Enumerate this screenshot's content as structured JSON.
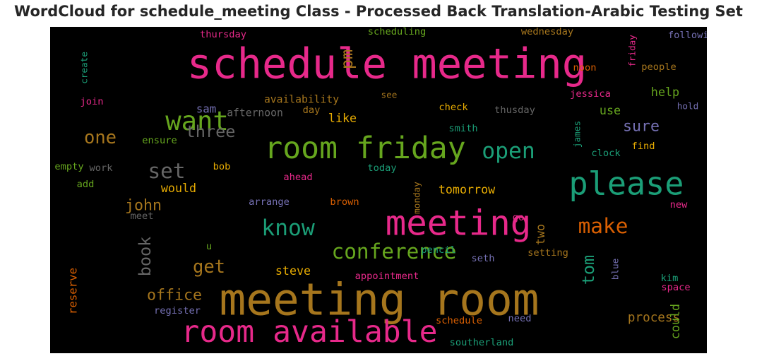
{
  "chart_data": {
    "type": "wordcloud",
    "title": "WordCloud for schedule_meeting Class - Processed Back Translation-Arabic Testing Set",
    "background": "#000000",
    "words": [
      {
        "text": "schedule meeting",
        "weight": 60,
        "color": "#e7298a"
      },
      {
        "text": "meeting room",
        "weight": 64,
        "color": "#a6761d"
      },
      {
        "text": "room available",
        "weight": 44,
        "color": "#e7298a"
      },
      {
        "text": "meeting",
        "weight": 50,
        "color": "#e7298a"
      },
      {
        "text": "room friday",
        "weight": 44,
        "color": "#66a61e"
      },
      {
        "text": "please",
        "weight": 46,
        "color": "#1b9e77"
      },
      {
        "text": "want",
        "weight": 38,
        "color": "#66a61e"
      },
      {
        "text": "conference",
        "weight": 30,
        "color": "#66a61e"
      },
      {
        "text": "open",
        "weight": 32,
        "color": "#1b9e77"
      },
      {
        "text": "know",
        "weight": 32,
        "color": "#1b9e77"
      },
      {
        "text": "make",
        "weight": 30,
        "color": "#d95f02"
      },
      {
        "text": "set",
        "weight": 30,
        "color": "#666666"
      },
      {
        "text": "three",
        "weight": 24,
        "color": "#666666"
      },
      {
        "text": "one",
        "weight": 26,
        "color": "#a6761d"
      },
      {
        "text": "pm",
        "weight": 24,
        "color": "#a6761d",
        "rotate": true
      },
      {
        "text": "sure",
        "weight": 22,
        "color": "#7570b3"
      },
      {
        "text": "get",
        "weight": 26,
        "color": "#a6761d"
      },
      {
        "text": "tom",
        "weight": 24,
        "color": "#1b9e77",
        "rotate": true
      },
      {
        "text": "john",
        "weight": 22,
        "color": "#a6761d"
      },
      {
        "text": "book",
        "weight": 24,
        "color": "#666666",
        "rotate": true
      },
      {
        "text": "office",
        "weight": 22,
        "color": "#a6761d"
      },
      {
        "text": "process",
        "weight": 18,
        "color": "#a6761d"
      },
      {
        "text": "tomorrow",
        "weight": 17,
        "color": "#e6ab02"
      },
      {
        "text": "would",
        "weight": 17,
        "color": "#e6ab02"
      },
      {
        "text": "steve",
        "weight": 17,
        "color": "#e6ab02"
      },
      {
        "text": "help",
        "weight": 17,
        "color": "#66a61e"
      },
      {
        "text": "use",
        "weight": 17,
        "color": "#66a61e"
      },
      {
        "text": "like",
        "weight": 17,
        "color": "#e6ab02"
      },
      {
        "text": "two",
        "weight": 17,
        "color": "#a6761d",
        "rotate": true
      },
      {
        "text": "could",
        "weight": 17,
        "color": "#66a61e",
        "rotate": true
      },
      {
        "text": "reserve",
        "weight": 16,
        "color": "#d95f02",
        "rotate": true
      },
      {
        "text": "sam",
        "weight": 16,
        "color": "#7570b3"
      },
      {
        "text": "availability",
        "weight": 15,
        "color": "#a6761d"
      },
      {
        "text": "afternoon",
        "weight": 15,
        "color": "#666666"
      },
      {
        "text": "day",
        "weight": 14,
        "color": "#a6761d"
      },
      {
        "text": "check",
        "weight": 14,
        "color": "#e6ab02"
      },
      {
        "text": "thusday",
        "weight": 14,
        "color": "#666666"
      },
      {
        "text": "jessica",
        "weight": 14,
        "color": "#e7298a"
      },
      {
        "text": "hold",
        "weight": 13,
        "color": "#7570b3"
      },
      {
        "text": "thursday",
        "weight": 14,
        "color": "#e7298a"
      },
      {
        "text": "scheduling",
        "weight": 14,
        "color": "#66a61e"
      },
      {
        "text": "wednesday",
        "weight": 14,
        "color": "#a6761d"
      },
      {
        "text": "following",
        "weight": 14,
        "color": "#7570b3"
      },
      {
        "text": "friday",
        "weight": 13,
        "color": "#e7298a",
        "rotate": true
      },
      {
        "text": "people",
        "weight": 14,
        "color": "#a6761d"
      },
      {
        "text": "noon",
        "weight": 14,
        "color": "#d95f02"
      },
      {
        "text": "create",
        "weight": 13,
        "color": "#1b9e77",
        "rotate": true
      },
      {
        "text": "join",
        "weight": 14,
        "color": "#e7298a"
      },
      {
        "text": "see",
        "weight": 13,
        "color": "#a6761d"
      },
      {
        "text": "smith",
        "weight": 14,
        "color": "#1b9e77"
      },
      {
        "text": "james",
        "weight": 13,
        "color": "#1b9e77",
        "rotate": true
      },
      {
        "text": "clock",
        "weight": 14,
        "color": "#1b9e77"
      },
      {
        "text": "find",
        "weight": 14,
        "color": "#e6ab02"
      },
      {
        "text": "ensure",
        "weight": 14,
        "color": "#66a61e"
      },
      {
        "text": "empty",
        "weight": 14,
        "color": "#66a61e"
      },
      {
        "text": "work",
        "weight": 14,
        "color": "#666666"
      },
      {
        "text": "today",
        "weight": 14,
        "color": "#1b9e77"
      },
      {
        "text": "bob",
        "weight": 14,
        "color": "#e6ab02"
      },
      {
        "text": "ahead",
        "weight": 14,
        "color": "#e7298a"
      },
      {
        "text": "add",
        "weight": 14,
        "color": "#66a61e"
      },
      {
        "text": "monday",
        "weight": 13,
        "color": "#a6761d",
        "rotate": true
      },
      {
        "text": "arrange",
        "weight": 14,
        "color": "#7570b3"
      },
      {
        "text": "brown",
        "weight": 14,
        "color": "#d95f02"
      },
      {
        "text": "new",
        "weight": 14,
        "color": "#e7298a"
      },
      {
        "text": "meet",
        "weight": 14,
        "color": "#666666"
      },
      {
        "text": "go",
        "weight": 14,
        "color": "#e7298a"
      },
      {
        "text": "u",
        "weight": 14,
        "color": "#66a61e"
      },
      {
        "text": "pencil",
        "weight": 14,
        "color": "#1b9e77"
      },
      {
        "text": "seth",
        "weight": 14,
        "color": "#7570b3"
      },
      {
        "text": "setting",
        "weight": 14,
        "color": "#a6761d"
      },
      {
        "text": "blue",
        "weight": 13,
        "color": "#7570b3",
        "rotate": true
      },
      {
        "text": "kim",
        "weight": 14,
        "color": "#1b9e77"
      },
      {
        "text": "appointment",
        "weight": 14,
        "color": "#e7298a"
      },
      {
        "text": "space",
        "weight": 14,
        "color": "#e7298a"
      },
      {
        "text": "register",
        "weight": 14,
        "color": "#7570b3"
      },
      {
        "text": "schedule",
        "weight": 14,
        "color": "#d95f02"
      },
      {
        "text": "need",
        "weight": 14,
        "color": "#7570b3"
      },
      {
        "text": "southerland",
        "weight": 14,
        "color": "#1b9e77"
      }
    ]
  }
}
